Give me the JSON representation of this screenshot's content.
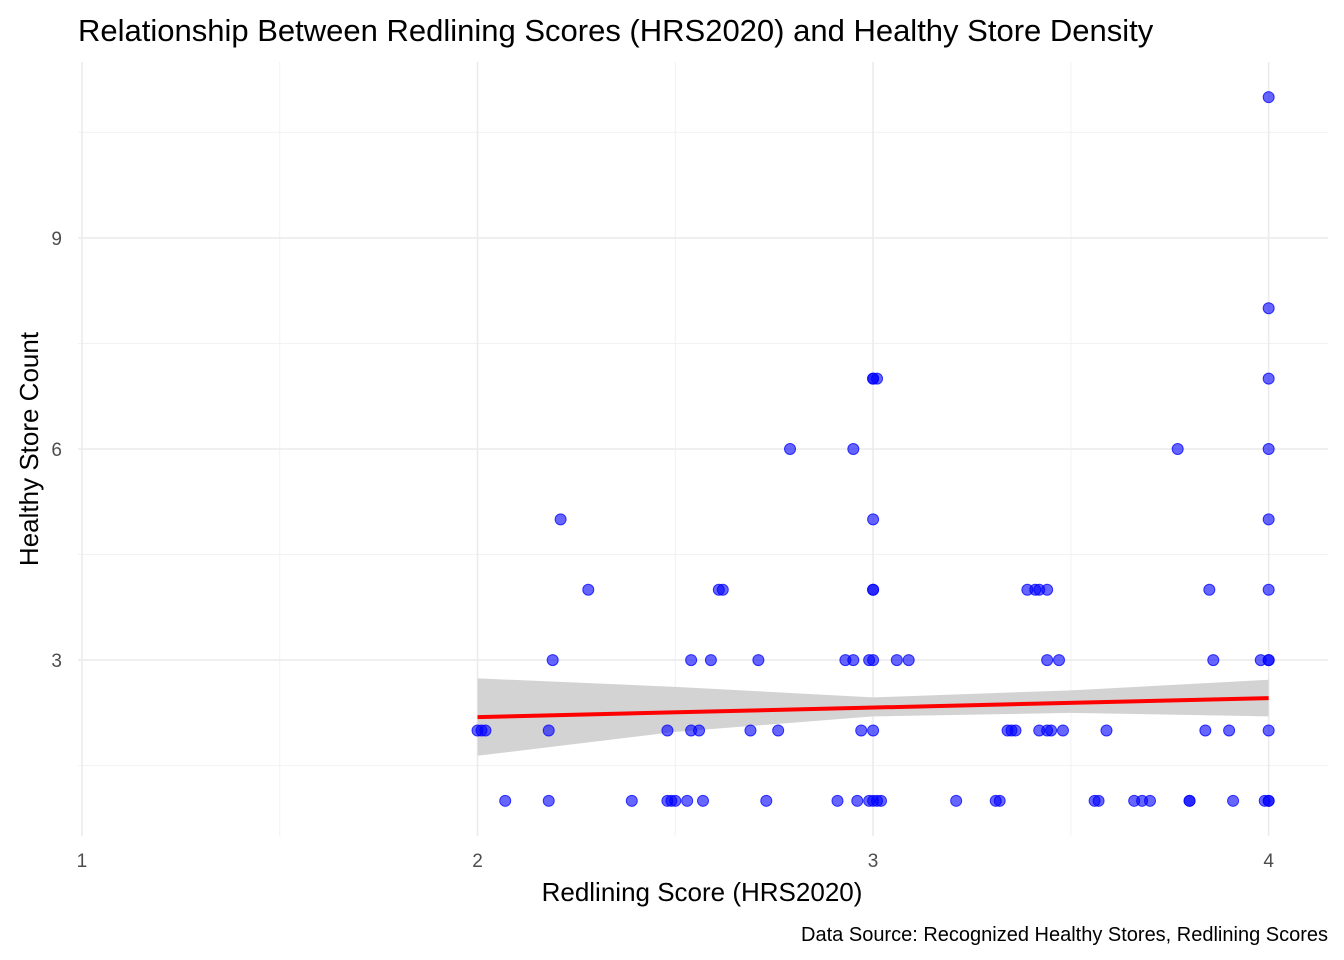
{
  "chart_data": {
    "type": "scatter",
    "title": "Relationship Between Redlining Scores (HRS2020) and Healthy Store Density",
    "xlabel": "Redlining Score (HRS2020)",
    "ylabel": "Healthy Store Count",
    "caption": "Data Source: Recognized Healthy Stores, Redlining Scores",
    "xlim": [
      0.99,
      4.15
    ],
    "ylim": [
      0.5,
      11.5
    ],
    "x_ticks": [
      1,
      2,
      3,
      4
    ],
    "y_ticks": [
      3,
      6,
      9
    ],
    "grid": true,
    "point_color": "#0000ff",
    "trend_color": "#ff0000",
    "band_color": "#d3d3d3",
    "series": [
      {
        "x": [
          2.0,
          2.01,
          2.02,
          2.07,
          2.18,
          2.18,
          2.19,
          2.21,
          2.28,
          2.39,
          2.48,
          2.49,
          2.5,
          2.48,
          2.53,
          2.54,
          2.54,
          2.56,
          2.57,
          2.59,
          2.61,
          2.62,
          2.69,
          2.71,
          2.73,
          2.76,
          2.79,
          2.91,
          2.93,
          2.95,
          2.95,
          2.96,
          2.97,
          2.99,
          3.0,
          3.01,
          3.0,
          2.99,
          3.0,
          3.0,
          3.0,
          3.0,
          3.0,
          3.0,
          3.01,
          3.02,
          3.06,
          3.09,
          3.21,
          3.31,
          3.32,
          3.34,
          3.35,
          3.36,
          3.39,
          3.41,
          3.42,
          3.42,
          3.44,
          3.44,
          3.44,
          3.45,
          3.47,
          3.48,
          3.56,
          3.57,
          3.59,
          3.66,
          3.68,
          3.7,
          3.77,
          3.8,
          3.8,
          3.84,
          3.85,
          3.86,
          3.9,
          3.91,
          3.98,
          3.99,
          4.0,
          4.0,
          4.0,
          4.0,
          4.0,
          4.0,
          4.0,
          4.0,
          4.0,
          4.0,
          4.0
        ],
        "y": [
          2,
          2,
          2,
          1,
          1,
          2,
          3,
          5,
          4,
          1,
          1,
          1,
          1,
          2,
          1,
          3,
          2,
          2,
          1,
          3,
          4,
          4,
          2,
          3,
          1,
          2,
          6,
          1,
          3,
          3,
          6,
          1,
          2,
          1,
          1,
          1,
          7,
          3,
          3,
          2,
          4,
          4,
          5,
          7,
          7,
          1,
          3,
          3,
          1,
          1,
          1,
          2,
          2,
          2,
          4,
          4,
          2,
          4,
          2,
          3,
          4,
          2,
          3,
          2,
          1,
          1,
          2,
          1,
          1,
          1,
          6,
          1,
          1,
          2,
          4,
          3,
          2,
          1,
          3,
          1,
          1,
          1,
          2,
          3,
          4,
          5,
          6,
          7,
          8,
          11,
          3
        ]
      }
    ],
    "trend": {
      "x": [
        2.0,
        4.0
      ],
      "y": [
        2.19,
        2.46
      ]
    },
    "confidence_band": {
      "x": [
        2.0,
        2.5,
        3.0,
        3.5,
        4.0
      ],
      "lower": [
        1.64,
        1.98,
        2.2,
        2.25,
        2.2
      ],
      "upper": [
        2.74,
        2.62,
        2.47,
        2.57,
        2.72
      ]
    }
  }
}
